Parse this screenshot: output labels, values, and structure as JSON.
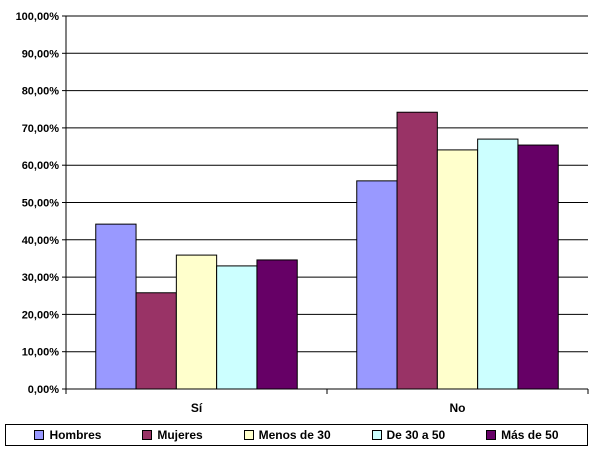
{
  "chart_data": {
    "type": "bar",
    "title": "",
    "xlabel": "",
    "ylabel": "",
    "categories": [
      "Sí",
      "No"
    ],
    "ylim": [
      0,
      100
    ],
    "ytick_step": 10,
    "ytick_labels": [
      "0,00%",
      "10,00%",
      "20,00%",
      "30,00%",
      "40,00%",
      "50,00%",
      "60,00%",
      "70,00%",
      "80,00%",
      "90,00%",
      "100,00%"
    ],
    "grid": true,
    "legend_position": "bottom",
    "series": [
      {
        "name": "Hombres",
        "color": "#9999FF",
        "values": [
          44.2,
          55.8
        ]
      },
      {
        "name": "Mujeres",
        "color": "#993366",
        "values": [
          25.8,
          74.2
        ]
      },
      {
        "name": "Menos de 30",
        "color": "#FFFFCC",
        "values": [
          35.9,
          64.1
        ]
      },
      {
        "name": "De 30 a 50",
        "color": "#CCFFFF",
        "values": [
          33.0,
          67.0
        ]
      },
      {
        "name": "Más de 50",
        "color": "#660066",
        "values": [
          34.6,
          65.4
        ]
      }
    ]
  }
}
